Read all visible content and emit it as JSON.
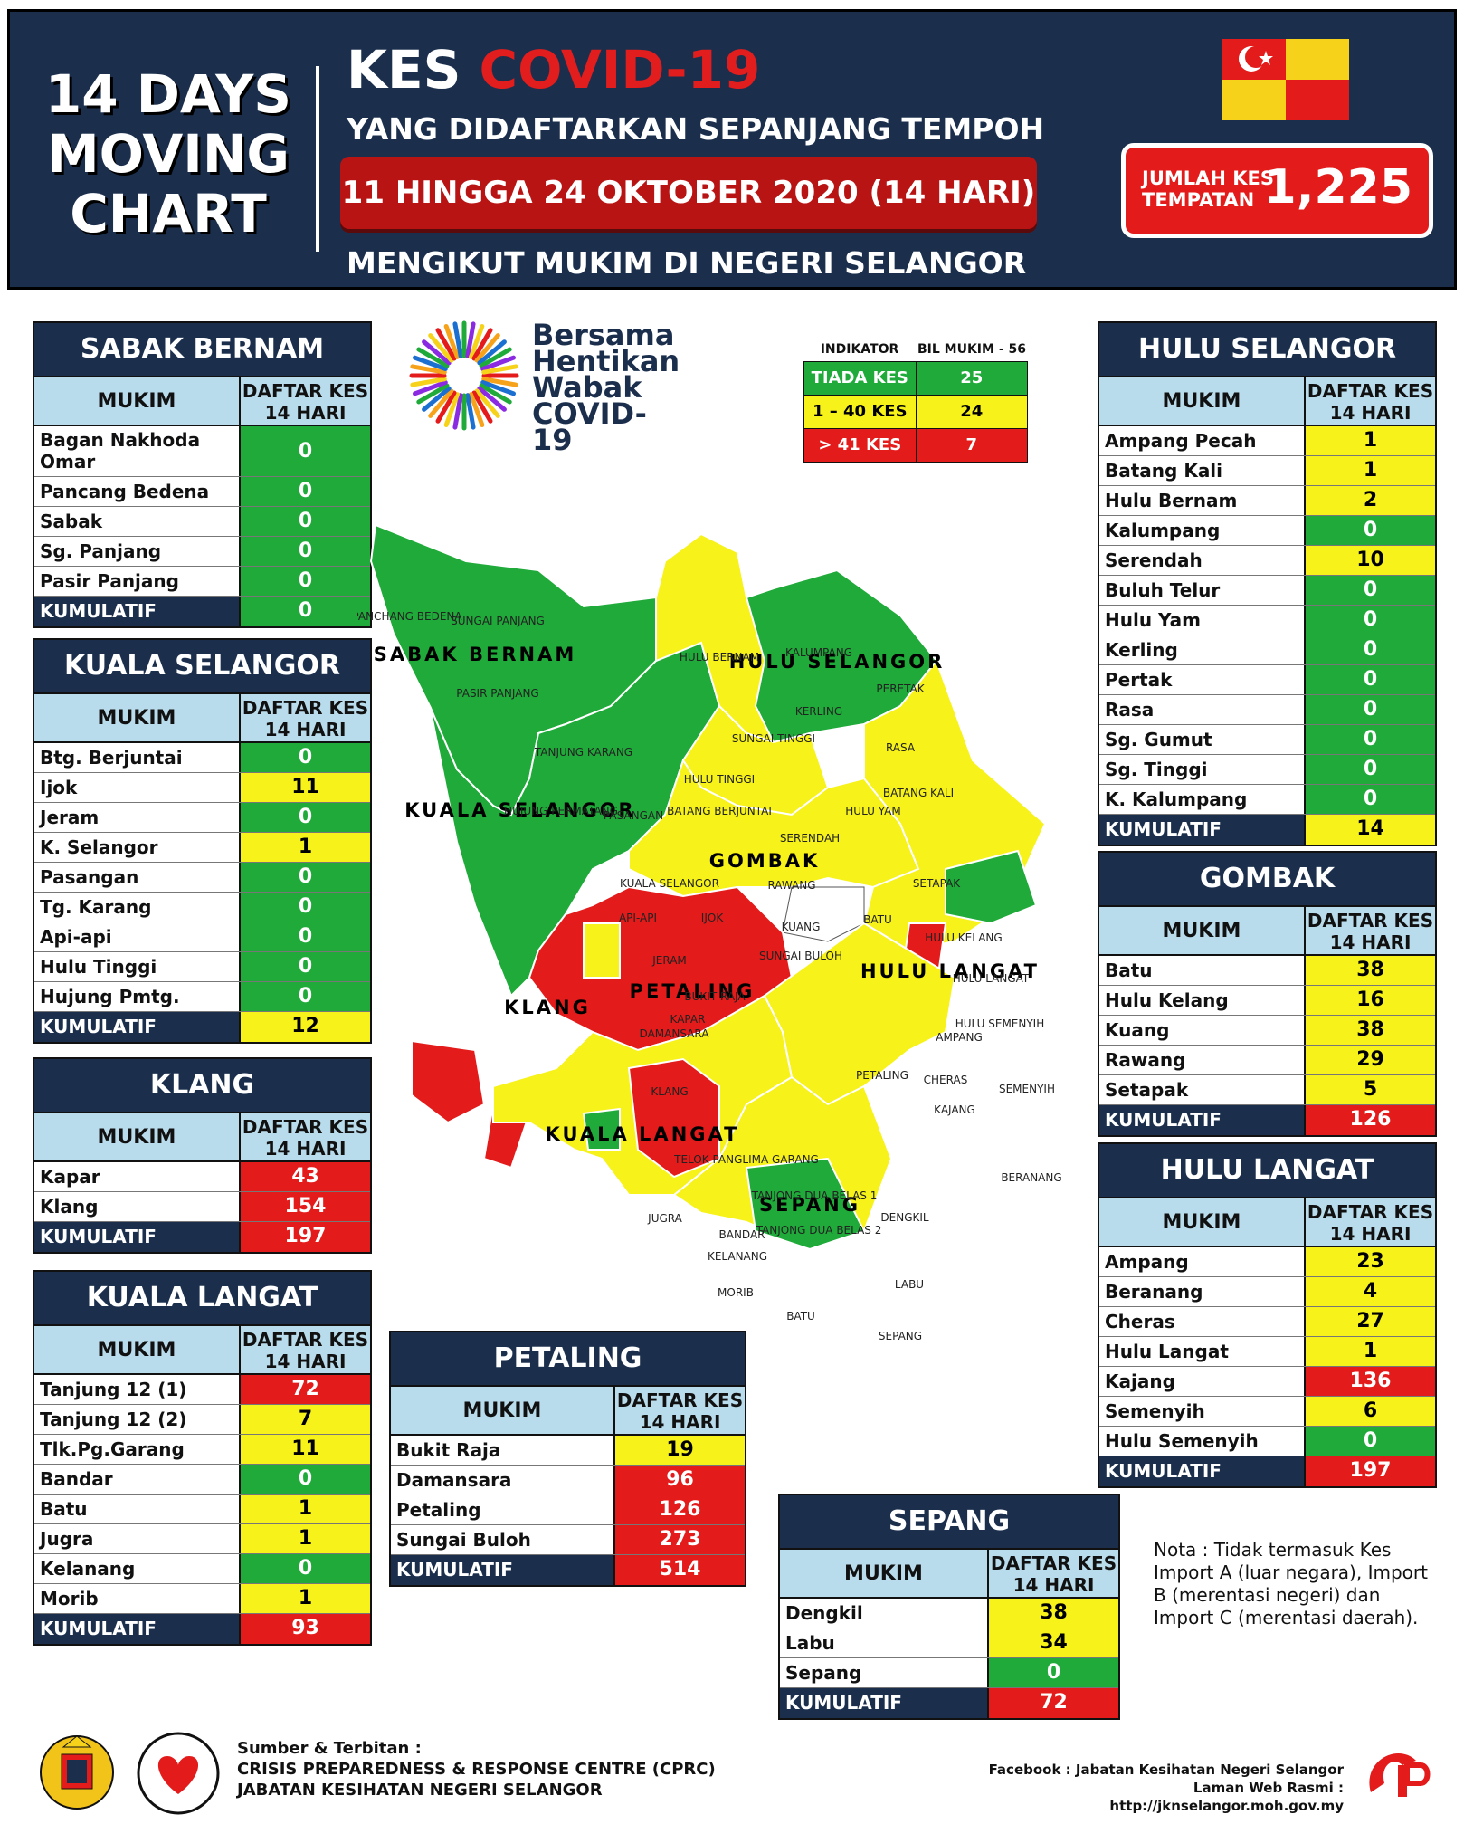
{
  "header": {
    "left_title_lines": [
      "14 DAYS",
      "MOVING",
      "CHART"
    ],
    "kes": "KES",
    "covid": "COVID-19",
    "subtitle1": "YANG DIDAFTARKAN SEPANJANG TEMPOH",
    "date_range": "11 HINGGA 24 OKTOBER 2020 (14 HARI)",
    "subtitle2": "MENGIKUT MUKIM DI NEGERI SELANGOR",
    "jumlah_label_1": "JUMLAH KES",
    "jumlah_label_2": "TEMPATAN",
    "jumlah_value": "1,225"
  },
  "logo": {
    "lines": [
      "Bersama",
      "Hentikan",
      "Wabak",
      "COVID-19"
    ]
  },
  "indicator": {
    "col1": "INDIKATOR",
    "col2": "BIL MUKIM - 56",
    "rows": [
      {
        "label": "TIADA KES",
        "count": "25",
        "color": "#1faa3a"
      },
      {
        "label": "1 – 40 KES",
        "count": "24",
        "color": "#f6f21a"
      },
      {
        "label": "> 41 KES",
        "count": "7",
        "color": "#e31b1b"
      }
    ]
  },
  "col_headers": {
    "mukim": "MUKIM",
    "daftar_1": "DAFTAR KES",
    "daftar_2": "14 HARI",
    "kumulatif": "KUMULATIF"
  },
  "districts": {
    "sabak_bernam": {
      "title": "SABAK BERNAM",
      "rows": [
        {
          "name": "Bagan Nakhoda Omar",
          "value": "0",
          "c": "g"
        },
        {
          "name": "Pancang Bedena",
          "value": "0",
          "c": "g"
        },
        {
          "name": "Sabak",
          "value": "0",
          "c": "g"
        },
        {
          "name": "Sg. Panjang",
          "value": "0",
          "c": "g"
        },
        {
          "name": "Pasir Panjang",
          "value": "0",
          "c": "g"
        }
      ],
      "total": "0",
      "total_c": "g"
    },
    "kuala_selangor": {
      "title": "KUALA SELANGOR",
      "rows": [
        {
          "name": "Btg. Berjuntai",
          "value": "0",
          "c": "g"
        },
        {
          "name": "Ijok",
          "value": "11",
          "c": "y"
        },
        {
          "name": "Jeram",
          "value": "0",
          "c": "g"
        },
        {
          "name": "K. Selangor",
          "value": "1",
          "c": "y"
        },
        {
          "name": "Pasangan",
          "value": "0",
          "c": "g"
        },
        {
          "name": "Tg. Karang",
          "value": "0",
          "c": "g"
        },
        {
          "name": "Api-api",
          "value": "0",
          "c": "g"
        },
        {
          "name": "Hulu Tinggi",
          "value": "0",
          "c": "g"
        },
        {
          "name": "Hujung Pmtg.",
          "value": "0",
          "c": "g"
        }
      ],
      "total": "12",
      "total_c": "y"
    },
    "klang": {
      "title": "KLANG",
      "rows": [
        {
          "name": "Kapar",
          "value": "43",
          "c": "r"
        },
        {
          "name": "Klang",
          "value": "154",
          "c": "r"
        }
      ],
      "total": "197",
      "total_c": "r"
    },
    "kuala_langat": {
      "title": "KUALA LANGAT",
      "rows": [
        {
          "name": "Tanjung 12 (1)",
          "value": "72",
          "c": "r"
        },
        {
          "name": "Tanjung 12 (2)",
          "value": "7",
          "c": "y"
        },
        {
          "name": "Tlk.Pg.Garang",
          "value": "11",
          "c": "y"
        },
        {
          "name": "Bandar",
          "value": "0",
          "c": "g"
        },
        {
          "name": "Batu",
          "value": "1",
          "c": "y"
        },
        {
          "name": "Jugra",
          "value": "1",
          "c": "y"
        },
        {
          "name": "Kelanang",
          "value": "0",
          "c": "g"
        },
        {
          "name": "Morib",
          "value": "1",
          "c": "y"
        }
      ],
      "total": "93",
      "total_c": "r"
    },
    "petaling": {
      "title": "PETALING",
      "rows": [
        {
          "name": "Bukit Raja",
          "value": "19",
          "c": "y"
        },
        {
          "name": "Damansara",
          "value": "96",
          "c": "r"
        },
        {
          "name": "Petaling",
          "value": "126",
          "c": "r"
        },
        {
          "name": "Sungai Buloh",
          "value": "273",
          "c": "r"
        }
      ],
      "total": "514",
      "total_c": "r"
    },
    "sepang": {
      "title": "SEPANG",
      "rows": [
        {
          "name": "Dengkil",
          "value": "38",
          "c": "y"
        },
        {
          "name": "Labu",
          "value": "34",
          "c": "y"
        },
        {
          "name": "Sepang",
          "value": "0",
          "c": "g"
        }
      ],
      "total": "72",
      "total_c": "r"
    },
    "hulu_selangor": {
      "title": "HULU SELANGOR",
      "rows": [
        {
          "name": "Ampang Pecah",
          "value": "1",
          "c": "y"
        },
        {
          "name": "Batang Kali",
          "value": "1",
          "c": "y"
        },
        {
          "name": "Hulu Bernam",
          "value": "2",
          "c": "y"
        },
        {
          "name": "Kalumpang",
          "value": "0",
          "c": "g"
        },
        {
          "name": "Serendah",
          "value": "10",
          "c": "y"
        },
        {
          "name": "Buluh Telur",
          "value": "0",
          "c": "g"
        },
        {
          "name": "Hulu Yam",
          "value": "0",
          "c": "g"
        },
        {
          "name": "Kerling",
          "value": "0",
          "c": "g"
        },
        {
          "name": "Pertak",
          "value": "0",
          "c": "g"
        },
        {
          "name": "Rasa",
          "value": "0",
          "c": "g"
        },
        {
          "name": "Sg. Gumut",
          "value": "0",
          "c": "g"
        },
        {
          "name": "Sg. Tinggi",
          "value": "0",
          "c": "g"
        },
        {
          "name": "K. Kalumpang",
          "value": "0",
          "c": "g"
        }
      ],
      "total": "14",
      "total_c": "y"
    },
    "gombak": {
      "title": "GOMBAK",
      "rows": [
        {
          "name": "Batu",
          "value": "38",
          "c": "y"
        },
        {
          "name": "Hulu Kelang",
          "value": "16",
          "c": "y"
        },
        {
          "name": "Kuang",
          "value": "38",
          "c": "y"
        },
        {
          "name": "Rawang",
          "value": "29",
          "c": "y"
        },
        {
          "name": "Setapak",
          "value": "5",
          "c": "y"
        }
      ],
      "total": "126",
      "total_c": "r"
    },
    "hulu_langat": {
      "title": "HULU LANGAT",
      "rows": [
        {
          "name": "Ampang",
          "value": "23",
          "c": "y"
        },
        {
          "name": "Beranang",
          "value": "4",
          "c": "y"
        },
        {
          "name": "Cheras",
          "value": "27",
          "c": "y"
        },
        {
          "name": "Hulu Langat",
          "value": "1",
          "c": "y"
        },
        {
          "name": "Kajang",
          "value": "136",
          "c": "r"
        },
        {
          "name": "Semenyih",
          "value": "6",
          "c": "y"
        },
        {
          "name": "Hulu Semenyih",
          "value": "0",
          "c": "g"
        }
      ],
      "total": "197",
      "total_c": "r"
    }
  },
  "map": {
    "district_labels": [
      "SABAK BERNAM",
      "HULU SELANGOR",
      "KUALA SELANGOR",
      "GOMBAK",
      "KLANG",
      "PETALING",
      "HULU LANGAT",
      "KUALA LANGAT",
      "SEPANG"
    ],
    "mukim_labels": [
      "PANCHANG BEDENA",
      "SUNGAI PANJANG",
      "PASIR PANJANG",
      "HULU BERNAM",
      "KALUMPANG",
      "PERETAK",
      "KERLING",
      "RASA",
      "SUNGAI TINGGI",
      "TANJUNG KARANG",
      "HULU TINGGI",
      "BATANG BERJUNTAI",
      "HUJUNG PERMATANG",
      "PASANGAN",
      "BATANG KALI",
      "HULU YAM",
      "SERENDAH",
      "RAWANG",
      "SETAPAK",
      "KUALA SELANGOR",
      "API-API",
      "IJOK",
      "KUANG",
      "BATU",
      "JERAM",
      "HULU KELANG",
      "SUNGAI BULOH",
      "HULU LANGAT",
      "KAPAR",
      "BUKIT RAJA",
      "DAMANSARA",
      "AMPANG",
      "PETALING",
      "CHERAS",
      "HULU SEMENYIH",
      "SEMENYIH",
      "KAJANG",
      "KLANG",
      "TELOK PANGLIMA GARANG",
      "BERANANG",
      "TANJONG DUA BELAS 1",
      "TANJONG DUA BELAS 2",
      "JUGRA",
      "BANDAR",
      "DENGKIL",
      "KELANANG",
      "MORIB",
      "LABU",
      "BATU",
      "SEPANG"
    ]
  },
  "note": "Nota : Tidak termasuk Kes Import A (luar negara), Import B (merentasi negeri) dan Import C (merentasi daerah).",
  "footer": {
    "source_label": "Sumber & Terbitan :",
    "source_1": "CRISIS PREPAREDNESS & RESPONSE CENTRE (CPRC)",
    "source_2": "JABATAN KESIHATAN NEGERI SELANGOR",
    "facebook": "Facebook : Jabatan Kesihatan Negeri Selangor",
    "website": "Laman Web Rasmi : http://jknselangor.moh.gov.my"
  }
}
